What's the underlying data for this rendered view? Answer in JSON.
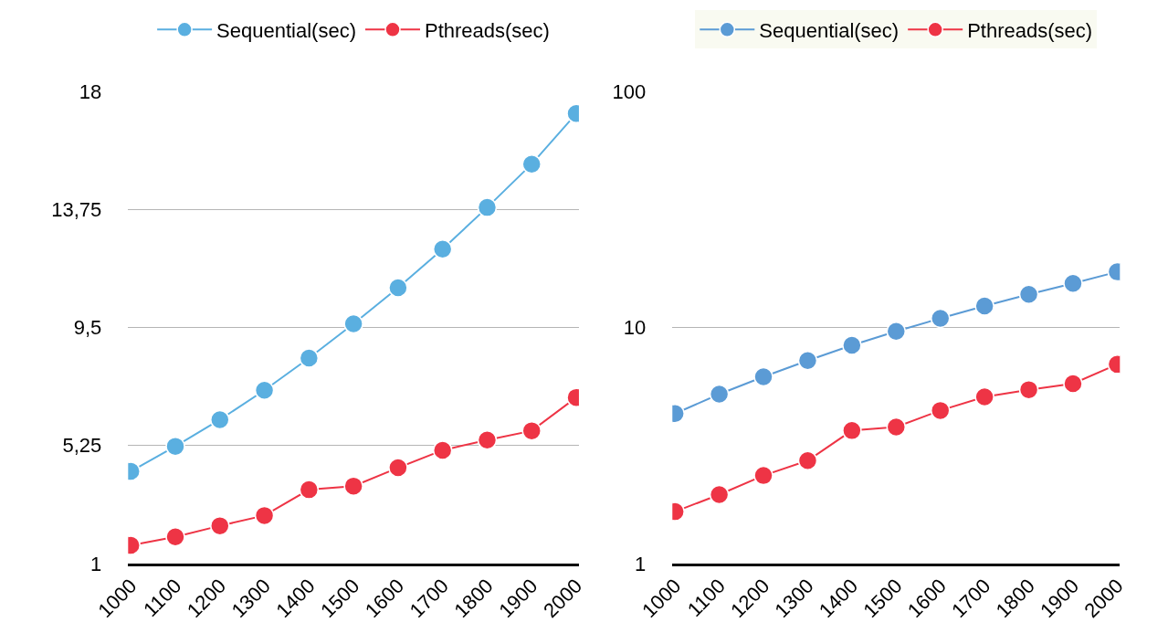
{
  "chart_data": [
    {
      "type": "line",
      "categories": [
        "1000",
        "1100",
        "1200",
        "1300",
        "1400",
        "1500",
        "1600",
        "1700",
        "1800",
        "1900",
        "2000"
      ],
      "series": [
        {
          "name": "Sequential(sec)",
          "color": "#5aafe0",
          "values": [
            4.32,
            5.22,
            6.18,
            7.24,
            8.4,
            9.63,
            10.93,
            12.32,
            13.82,
            15.38,
            17.2
          ]
        },
        {
          "name": "Pthreads(sec)",
          "color": "#ee3445",
          "values": [
            1.66,
            1.96,
            2.36,
            2.73,
            3.66,
            3.79,
            4.45,
            5.08,
            5.45,
            5.78,
            6.98
          ]
        }
      ],
      "ylim": [
        1,
        18
      ],
      "yticks": [
        1,
        {
          "value": 5.25,
          "label": "5,25"
        },
        {
          "value": 9.5,
          "label": "9,5"
        },
        {
          "value": 13.75,
          "label": "13,75"
        },
        18
      ],
      "grid": "y",
      "legend": "top",
      "marker": "circle",
      "line_style": "solid"
    },
    {
      "type": "line",
      "categories": [
        "1000",
        "1100",
        "1200",
        "1300",
        "1400",
        "1500",
        "1600",
        "1700",
        "1800",
        "1900",
        "2000"
      ],
      "series": [
        {
          "name": "Sequential(sec)",
          "color": "#5b9bd5",
          "values": [
            4.32,
            5.22,
            6.18,
            7.24,
            8.4,
            9.63,
            10.93,
            12.32,
            13.82,
            15.38,
            17.2
          ]
        },
        {
          "name": "Pthreads(sec)",
          "color": "#ee3445",
          "values": [
            1.66,
            1.96,
            2.36,
            2.73,
            3.66,
            3.79,
            4.45,
            5.08,
            5.45,
            5.78,
            6.98
          ]
        }
      ],
      "ylim": [
        1,
        100
      ],
      "yticks": [
        1,
        10,
        100
      ],
      "log": true,
      "grid": "y",
      "legend": "top",
      "marker": "circle",
      "line_style": "solid"
    }
  ]
}
